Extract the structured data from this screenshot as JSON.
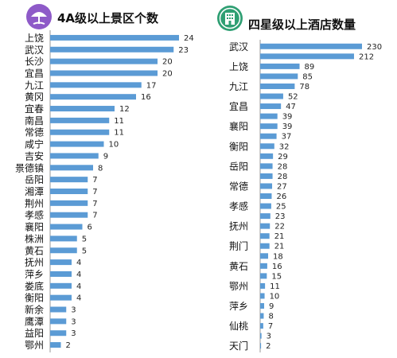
{
  "colors": {
    "bar": "#5b9bd5",
    "axis": "#9a9a9a",
    "left_icon_bg": "#8e5ac8",
    "right_icon_bg": "#2f9f73"
  },
  "icons": {
    "left": "beach-umbrella-icon",
    "right": "hotel-building-icon"
  },
  "chart_data": [
    {
      "type": "bar",
      "orientation": "horizontal",
      "title": "4A级以上景区个数",
      "categories": [
        "上饶",
        "武汉",
        "长沙",
        "宜昌",
        "九江",
        "黄冈",
        "宜春",
        "南昌",
        "常德",
        "咸宁",
        "吉安",
        "景德镇",
        "岳阳",
        "湘潭",
        "荆州",
        "孝感",
        "襄阳",
        "株洲",
        "黄石",
        "抚州",
        "萍乡",
        "娄底",
        "衡阳",
        "新余",
        "鹰潭",
        "益阳",
        "鄂州"
      ],
      "values": [
        24,
        23,
        20,
        20,
        17,
        16,
        12,
        11,
        11,
        10,
        9,
        8,
        7,
        7,
        7,
        7,
        6,
        5,
        5,
        4,
        4,
        4,
        4,
        3,
        3,
        3,
        2
      ],
      "xlim": [
        0,
        24
      ],
      "grid": false,
      "legend": "none"
    },
    {
      "type": "bar",
      "orientation": "horizontal",
      "title": "四星级以上酒店数量",
      "categories": [
        "武汉",
        "",
        "上饶",
        "",
        "九江",
        "",
        "宜昌",
        "",
        "襄阳",
        "",
        "衡阳",
        "",
        "岳阳",
        "",
        "常德",
        "",
        "孝感",
        "",
        "抚州",
        "",
        "荆门",
        "",
        "黄石",
        "",
        "鄂州",
        "",
        "萍乡",
        "",
        "仙桃",
        "",
        "天门"
      ],
      "values": [
        230,
        212,
        89,
        85,
        78,
        52,
        47,
        39,
        39,
        37,
        32,
        29,
        28,
        28,
        27,
        26,
        25,
        23,
        22,
        21,
        21,
        18,
        16,
        15,
        11,
        10,
        9,
        8,
        7,
        3,
        2
      ],
      "xlim": [
        0,
        230
      ],
      "grid": false,
      "legend": "none"
    }
  ]
}
